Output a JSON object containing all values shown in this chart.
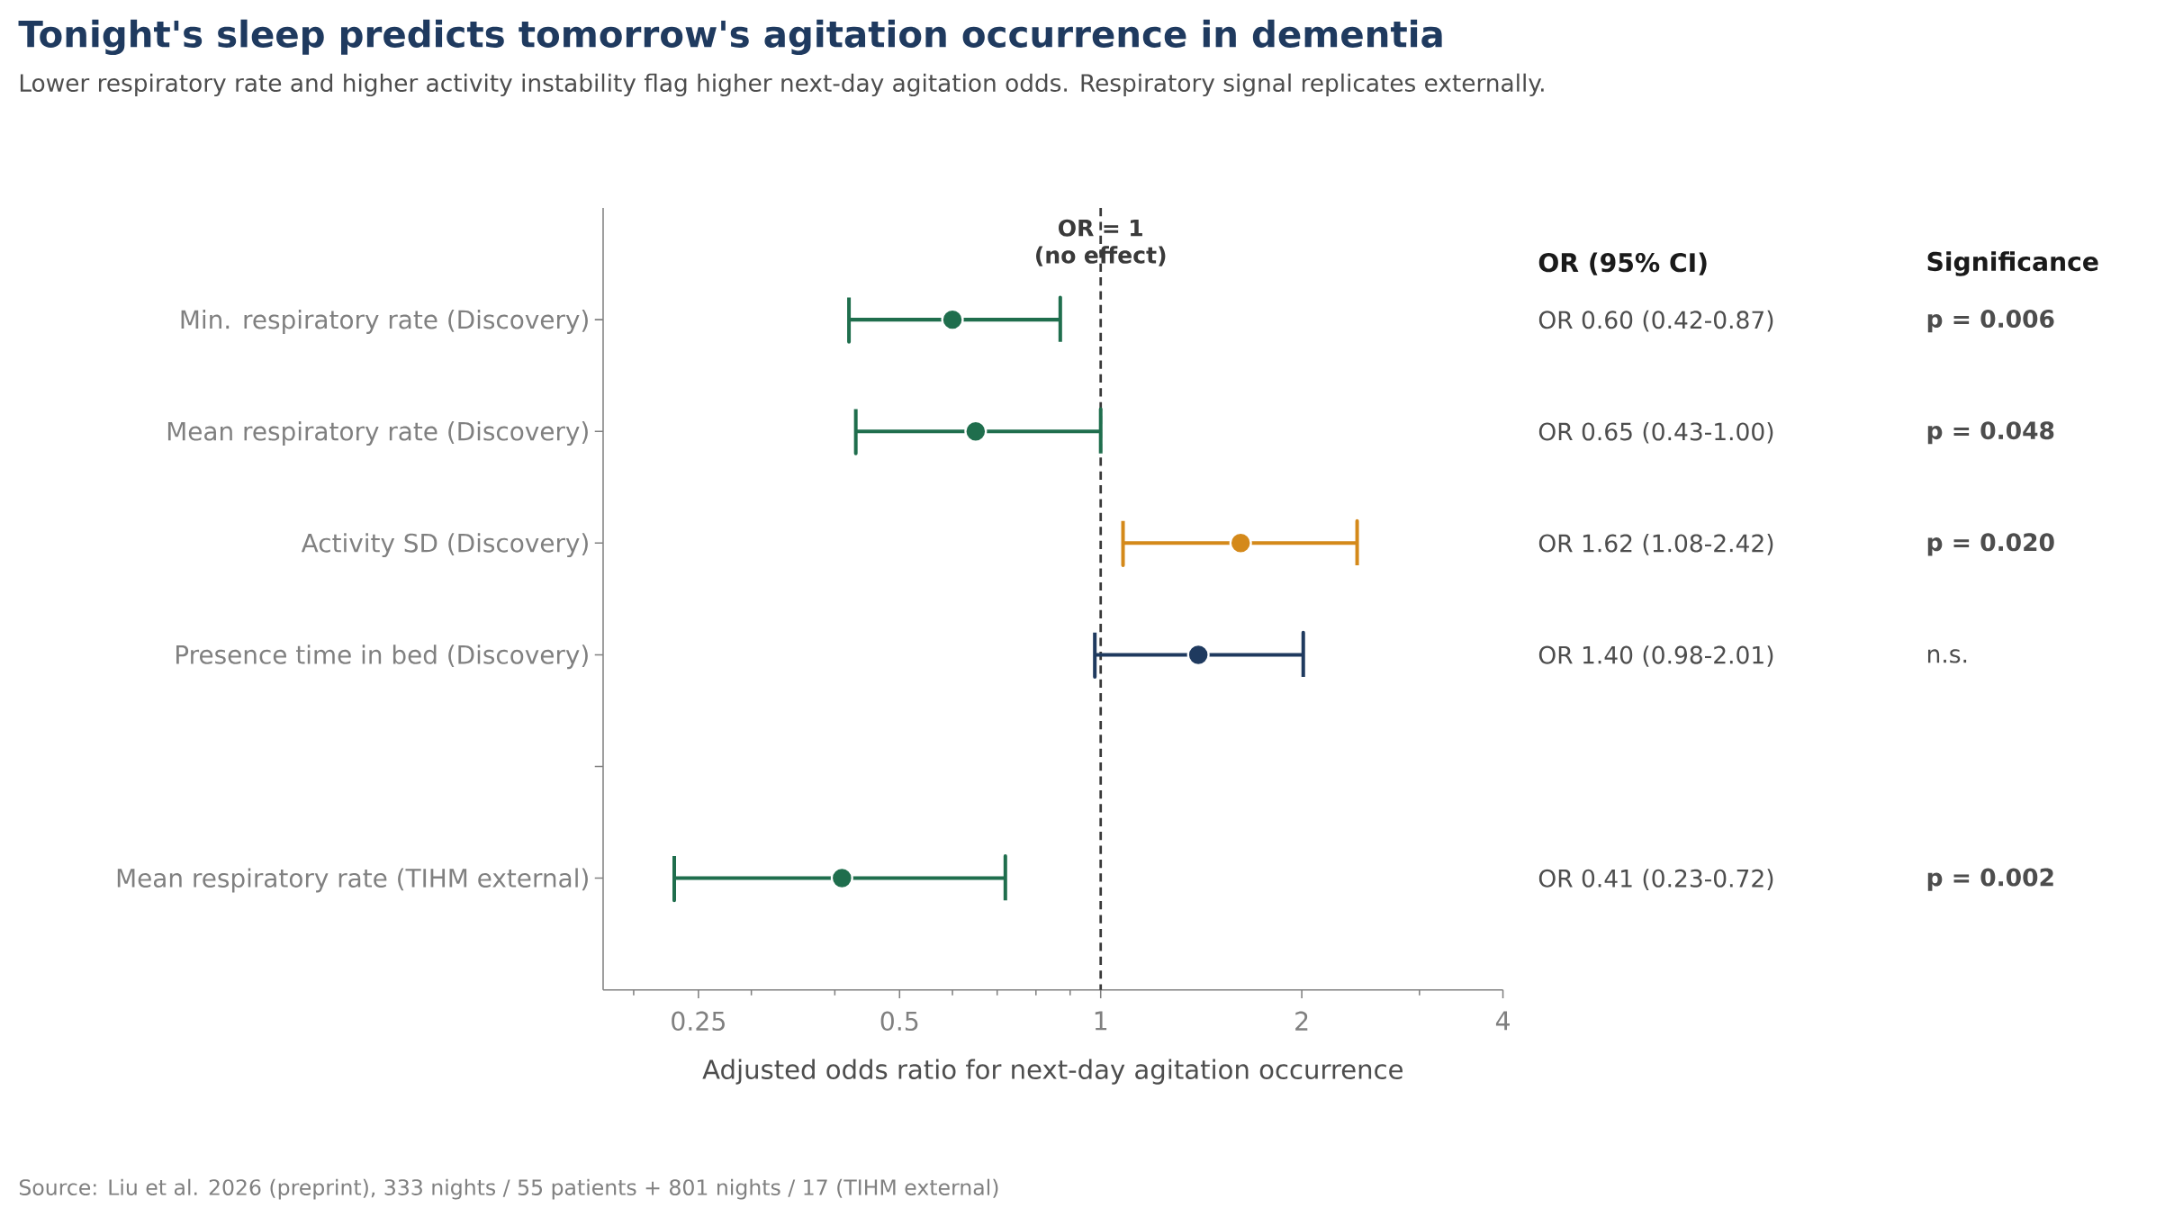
{
  "chart_data": {
    "type": "scatter",
    "orientation": "horizontal",
    "title": "Tonight's sleep predicts tomorrow's agitation occurrence in dementia",
    "subtitle": "Lower respiratory rate and higher activity instability flag higher next-day agitation odds. Respiratory signal replicates externally.",
    "xlabel": "Adjusted odds ratio for next-day agitation occurrence",
    "categories": [
      "Min. respiratory rate (Discovery)",
      "Mean respiratory rate (Discovery)",
      "Activity SD (Discovery)",
      "Presence time in bed (Discovery)",
      null,
      "Mean respiratory rate (TIHM external)"
    ],
    "values": [
      0.6,
      0.65,
      1.62,
      1.4,
      null,
      0.41
    ],
    "errors": [
      [
        0.42,
        0.87
      ],
      [
        0.43,
        1.0
      ],
      [
        1.08,
        2.42
      ],
      [
        0.98,
        2.01
      ],
      null,
      [
        0.23,
        0.72
      ]
    ],
    "colors": [
      "#1f6e4d",
      "#1f6e4d",
      "#d4891a",
      "#1f3a5f",
      null,
      "#1f6e4d"
    ],
    "value_labels": [
      "OR 0.60 (0.42-0.87)",
      "OR 0.65 (0.43-1.00)",
      "OR 1.62 (1.08-2.42)",
      "OR 1.40 (0.98-2.01)",
      null,
      "OR 0.41 (0.23-0.72)"
    ],
    "marker": "circle",
    "log": "x",
    "xlim": [
      0.18,
      4
    ],
    "xticks": [
      {
        "value": 0.2,
        "label": null
      },
      0.25,
      {
        "value": 0.3,
        "label": null
      },
      {
        "value": 0.4,
        "label": null
      },
      0.5,
      {
        "value": 0.6,
        "label": null
      },
      {
        "value": 0.7,
        "label": null
      },
      {
        "value": 0.8,
        "label": null
      },
      {
        "value": 0.9,
        "label": null
      },
      1,
      2,
      {
        "value": 3,
        "label": null
      },
      4
    ],
    "ref_lines": [
      {
        "axis": "x",
        "value": 1,
        "label": "OR = 1\n(no effect)",
        "line_style": "dashed",
        "color": "#3a3a3a"
      }
    ],
    "annotations": [
      "OR (95% CI)",
      "Significance",
      "**p = 0.006**",
      "**p = 0.048**",
      "**p = 0.020**",
      "n.s.",
      "**p = 0.002**",
      "Source: Liu et al. 2026 (preprint), 333 nights / 55 patients + 801 nights / 17 (TIHM external)"
    ]
  }
}
